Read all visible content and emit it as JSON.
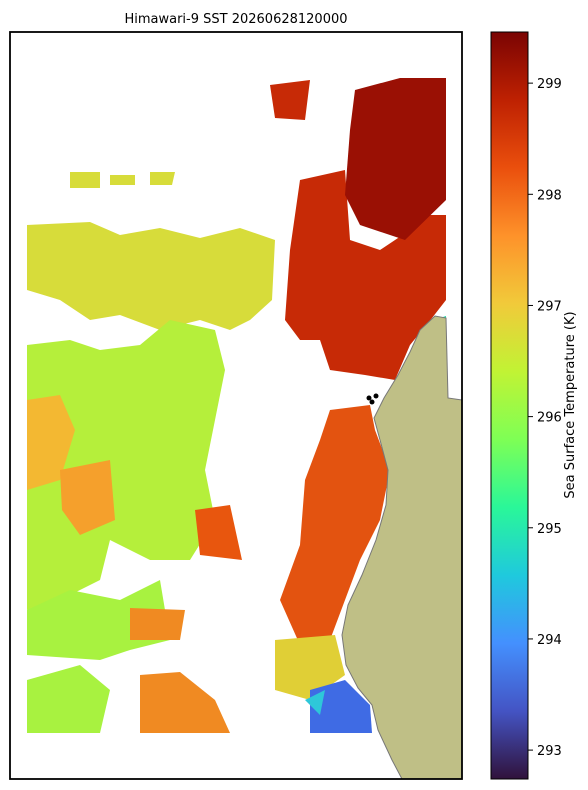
{
  "chart_data": {
    "type": "map",
    "title": "Himawari-9 SST 20260628120000",
    "colorbar": {
      "label": "Sea Surface Temperature (K)",
      "colormap": "turbo",
      "lim": [
        292.74,
        299.46
      ],
      "ticks": [
        293,
        294,
        295,
        296,
        297,
        298,
        299
      ]
    }
  }
}
